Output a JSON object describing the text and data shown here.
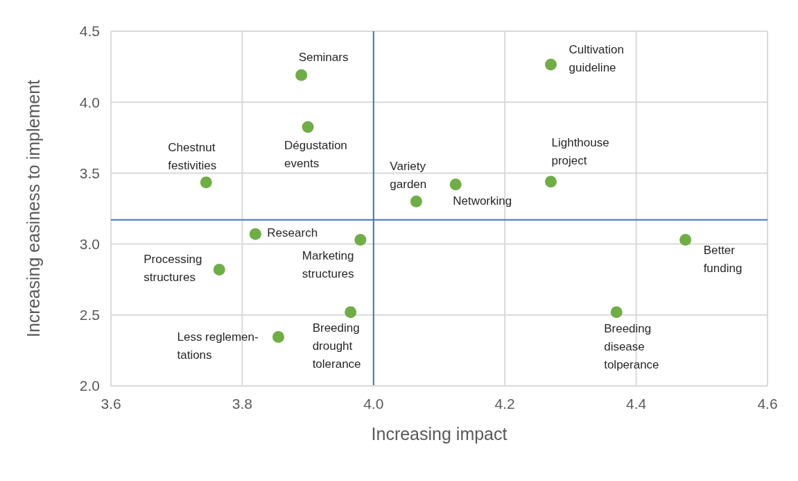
{
  "chart_data": {
    "type": "scatter",
    "xlabel": "Increasing impact",
    "ylabel": "Increasing easiness to implement",
    "xlim": [
      3.6,
      4.6
    ],
    "ylim": [
      2.0,
      4.5
    ],
    "xticks": [
      {
        "value": 3.6,
        "label": "3.6"
      },
      {
        "value": 3.8,
        "label": "3.8"
      },
      {
        "value": 4.0,
        "label": "4.0"
      },
      {
        "value": 4.2,
        "label": "4.2"
      },
      {
        "value": 4.4,
        "label": "4.4"
      },
      {
        "value": 4.6,
        "label": "4.6"
      }
    ],
    "yticks": [
      {
        "value": 2.0,
        "label": "2.0"
      },
      {
        "value": 2.5,
        "label": "2.5"
      },
      {
        "value": 3.0,
        "label": "3.0"
      },
      {
        "value": 3.5,
        "label": "3.5"
      },
      {
        "value": 4.0,
        "label": "4.0"
      },
      {
        "value": 4.5,
        "label": "4.5"
      }
    ],
    "grid": true,
    "marker": "circle",
    "series": [
      {
        "color": "#70ad47",
        "x": [
          3.89,
          4.27,
          3.9,
          3.745,
          4.065,
          4.125,
          4.27,
          3.82,
          3.98,
          3.765,
          4.475,
          3.965,
          3.855,
          4.37
        ],
        "values": [
          4.19,
          4.265,
          3.825,
          3.435,
          3.3,
          3.42,
          3.44,
          3.07,
          3.03,
          2.82,
          3.03,
          2.52,
          2.345,
          2.52
        ]
      }
    ],
    "ref_lines": [
      {
        "axis": "x",
        "value": 4.0,
        "color": "#4472c4"
      },
      {
        "axis": "y",
        "value": 3.17,
        "color": "#4472c4"
      }
    ],
    "annotations": [
      {
        "text": "Seminars",
        "x": 3.89,
        "y": 4.19
      },
      {
        "text": "Cultivation\nguideline",
        "x": 4.27,
        "y": 4.265
      },
      {
        "text": "Dégustation\nevents",
        "x": 3.9,
        "y": 3.825
      },
      {
        "text": "Chestnut\nfestivities",
        "x": 3.745,
        "y": 3.435
      },
      {
        "text": "Variety\ngarden",
        "x": 4.065,
        "y": 3.3
      },
      {
        "text": "Networking",
        "x": 4.125,
        "y": 3.42
      },
      {
        "text": "Lighthouse\nproject",
        "x": 4.27,
        "y": 3.44
      },
      {
        "text": "Research",
        "x": 3.82,
        "y": 3.07
      },
      {
        "text": "Marketing\nstructures",
        "x": 3.98,
        "y": 3.03
      },
      {
        "text": "Processing\nstructures",
        "x": 3.765,
        "y": 2.82
      },
      {
        "text": "Better\nfunding",
        "x": 4.475,
        "y": 3.03
      },
      {
        "text": "Breeding\ndrought\ntolerance",
        "x": 3.965,
        "y": 2.52
      },
      {
        "text": "Less reglemen-\ntations",
        "x": 3.855,
        "y": 2.345
      },
      {
        "text": "Breeding\ndisease\ntolperance",
        "x": 4.37,
        "y": 2.52
      }
    ]
  }
}
